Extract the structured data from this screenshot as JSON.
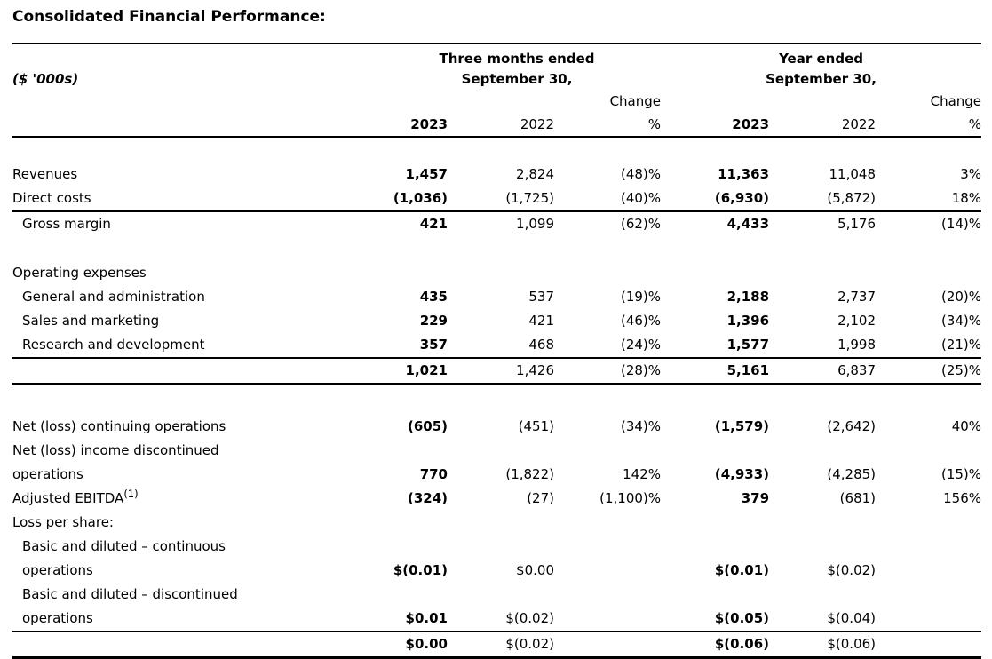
{
  "title": "Consolidated Financial Performance:",
  "table": {
    "units_label": "($ '000s)",
    "groups": [
      {
        "line1": "Three months ended",
        "line2": "September 30,"
      },
      {
        "line1": "Year ended",
        "line2": "September 30,"
      }
    ],
    "change_label": "Change",
    "col_headers": [
      "2023",
      "2022",
      "%",
      "2023",
      "2022",
      "%"
    ],
    "rows": [
      {
        "name": "row-revenues",
        "label": "Revenues",
        "space": "sp",
        "values": [
          "1,457",
          "2,824",
          "(48)%",
          "11,363",
          "11,048",
          "3%"
        ]
      },
      {
        "name": "row-direct-costs",
        "label": "Direct costs",
        "rule": "rule-below",
        "values": [
          "(1,036)",
          "(1,725)",
          "(40)%",
          "(6,930)",
          "(5,872)",
          "18%"
        ]
      },
      {
        "name": "row-gross-margin",
        "label": "Gross margin",
        "indent": true,
        "values": [
          "421",
          "1,099",
          "(62)%",
          "4,433",
          "5,176",
          "(14)%"
        ]
      },
      {
        "name": "row-operating-expenses",
        "label": "Operating expenses",
        "space": "sp",
        "values": [
          "",
          "",
          "",
          "",
          "",
          ""
        ]
      },
      {
        "name": "row-general-admin",
        "label": "General and administration",
        "indent": true,
        "values": [
          "435",
          "537",
          "(19)%",
          "2,188",
          "2,737",
          "(20)%"
        ]
      },
      {
        "name": "row-sales-marketing",
        "label": "Sales and marketing",
        "indent": true,
        "values": [
          "229",
          "421",
          "(46)%",
          "1,396",
          "2,102",
          "(34)%"
        ]
      },
      {
        "name": "row-research-development",
        "label": "Research and development",
        "indent": true,
        "rule": "rule-below",
        "values": [
          "357",
          "468",
          "(24)%",
          "1,577",
          "1,998",
          "(21)%"
        ]
      },
      {
        "name": "row-operating-expenses-total",
        "label": "",
        "rule": "rule-below",
        "values": [
          "1,021",
          "1,426",
          "(28)%",
          "5,161",
          "6,837",
          "(25)%"
        ]
      },
      {
        "name": "row-net-loss-continuing",
        "label": "Net (loss) continuing operations",
        "space": "sp2",
        "values": [
          "(605)",
          "(451)",
          "(34)%",
          "(1,579)",
          "(2,642)",
          "40%"
        ]
      },
      {
        "name": "row-net-loss-discontinued",
        "label": "Net (loss) income discontinued",
        "label2": "operations",
        "values": [
          "770",
          "(1,822)",
          "142%",
          "(4,933)",
          "(4,285)",
          "(15)%"
        ]
      },
      {
        "name": "row-adjusted-ebitda",
        "label": "Adjusted EBITDA",
        "sup": "(1)",
        "values": [
          "(324)",
          "(27)",
          "(1,100)%",
          "379",
          "(681)",
          "156%"
        ]
      },
      {
        "name": "row-loss-per-share",
        "label": "Loss per share:",
        "values": [
          "",
          "",
          "",
          "",
          "",
          ""
        ]
      },
      {
        "name": "row-lps-continuous",
        "label": "Basic and diluted – continuous",
        "label2": "operations",
        "indent": true,
        "values": [
          "$(0.01)",
          "$0.00",
          "",
          "$(0.01)",
          "$(0.02)",
          ""
        ]
      },
      {
        "name": "row-lps-discontinued",
        "label": "Basic and diluted – discontinued",
        "label2": "operations",
        "indent": true,
        "rule": "rule-below",
        "values": [
          "$0.01",
          "$(0.02)",
          "",
          "$(0.05)",
          "$(0.04)",
          ""
        ]
      },
      {
        "name": "row-lps-total",
        "label": "",
        "rule": "rule-below-thick",
        "values": [
          "$0.00",
          "$(0.02)",
          "",
          "$(0.06)",
          "$(0.06)",
          ""
        ]
      }
    ]
  }
}
